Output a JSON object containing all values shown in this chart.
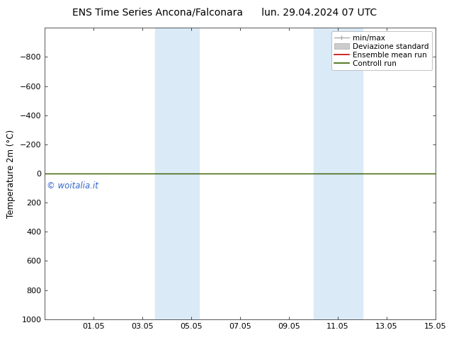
{
  "title": "ENS Time Series Ancona/Falconara      lun. 29.04.2024 07 UTC",
  "ylabel": "Temperature 2m (°C)",
  "ylim_top": -1000,
  "ylim_bottom": 1000,
  "yticks": [
    -800,
    -600,
    -400,
    -200,
    0,
    200,
    400,
    600,
    800,
    1000
  ],
  "x_start_date": "29.04",
  "xlim_start": 0,
  "xlim_end": 16,
  "xtick_positions": [
    2,
    4,
    6,
    8,
    10,
    12,
    14,
    16
  ],
  "xtick_labels": [
    "01.05",
    "03.05",
    "05.05",
    "07.05",
    "09.05",
    "11.05",
    "13.05",
    "15.05"
  ],
  "shaded_bands": [
    {
      "x_start": 4.5,
      "x_end": 6.3
    },
    {
      "x_start": 11.0,
      "x_end": 13.0
    }
  ],
  "shade_color": "#daeaf7",
  "green_line_color": "#336600",
  "red_line_color": "#cc0000",
  "watermark_text": "© woitalia.it",
  "watermark_color": "#3366cc",
  "bg_color": "#ffffff",
  "title_fontsize": 10,
  "tick_fontsize": 8,
  "ylabel_fontsize": 8.5,
  "legend_fontsize": 7.5
}
